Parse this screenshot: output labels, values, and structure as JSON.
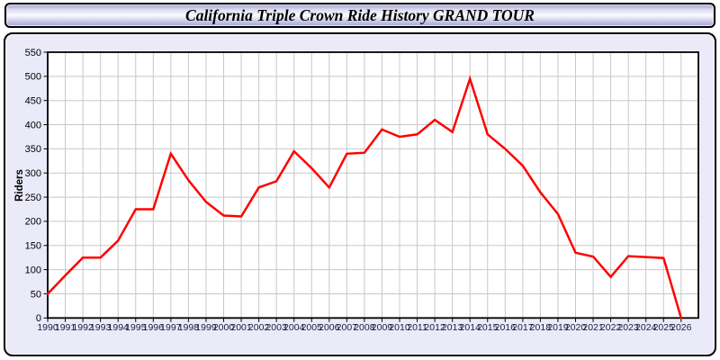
{
  "title_bar": {
    "title": "California Triple Crown Ride History GRAND TOUR"
  },
  "chart_data": {
    "type": "line",
    "title": "California Triple Crown Ride History GRAND TOUR",
    "xlabel": "",
    "ylabel": "Riders",
    "categories": [
      "1990",
      "1991",
      "1992",
      "1993",
      "1994",
      "1995",
      "1996",
      "1997",
      "1998",
      "1999",
      "2000",
      "2001",
      "2002",
      "2003",
      "2004",
      "2005",
      "2006",
      "2007",
      "2008",
      "2009",
      "2010",
      "2011",
      "2012",
      "2013",
      "2014",
      "2015",
      "2016",
      "2017",
      "2018",
      "2019",
      "2020",
      "2021",
      "2022",
      "2023",
      "2024",
      "2025",
      "2026"
    ],
    "series": [
      {
        "name": "Riders",
        "values": [
          50,
          88,
          125,
          125,
          160,
          225,
          225,
          340,
          285,
          240,
          212,
          210,
          270,
          283,
          345,
          310,
          270,
          340,
          342,
          390,
          375,
          380,
          410,
          385,
          495,
          380,
          350,
          315,
          260,
          215,
          135,
          127,
          85,
          128,
          126,
          124,
          0
        ]
      }
    ],
    "ylim": [
      0,
      550
    ],
    "ytick_step": 50,
    "grid": true,
    "legend_position": "none",
    "colors": {
      "line": "#ff0000",
      "plot_background": "#ffffff",
      "panel_background": "#eaeaf9",
      "gridline": "#c8c8c8",
      "plot_border": "#000000",
      "y_tick_label": "#000000",
      "x_tick_label": "#1a1a40",
      "axis_title": "#000000"
    }
  }
}
